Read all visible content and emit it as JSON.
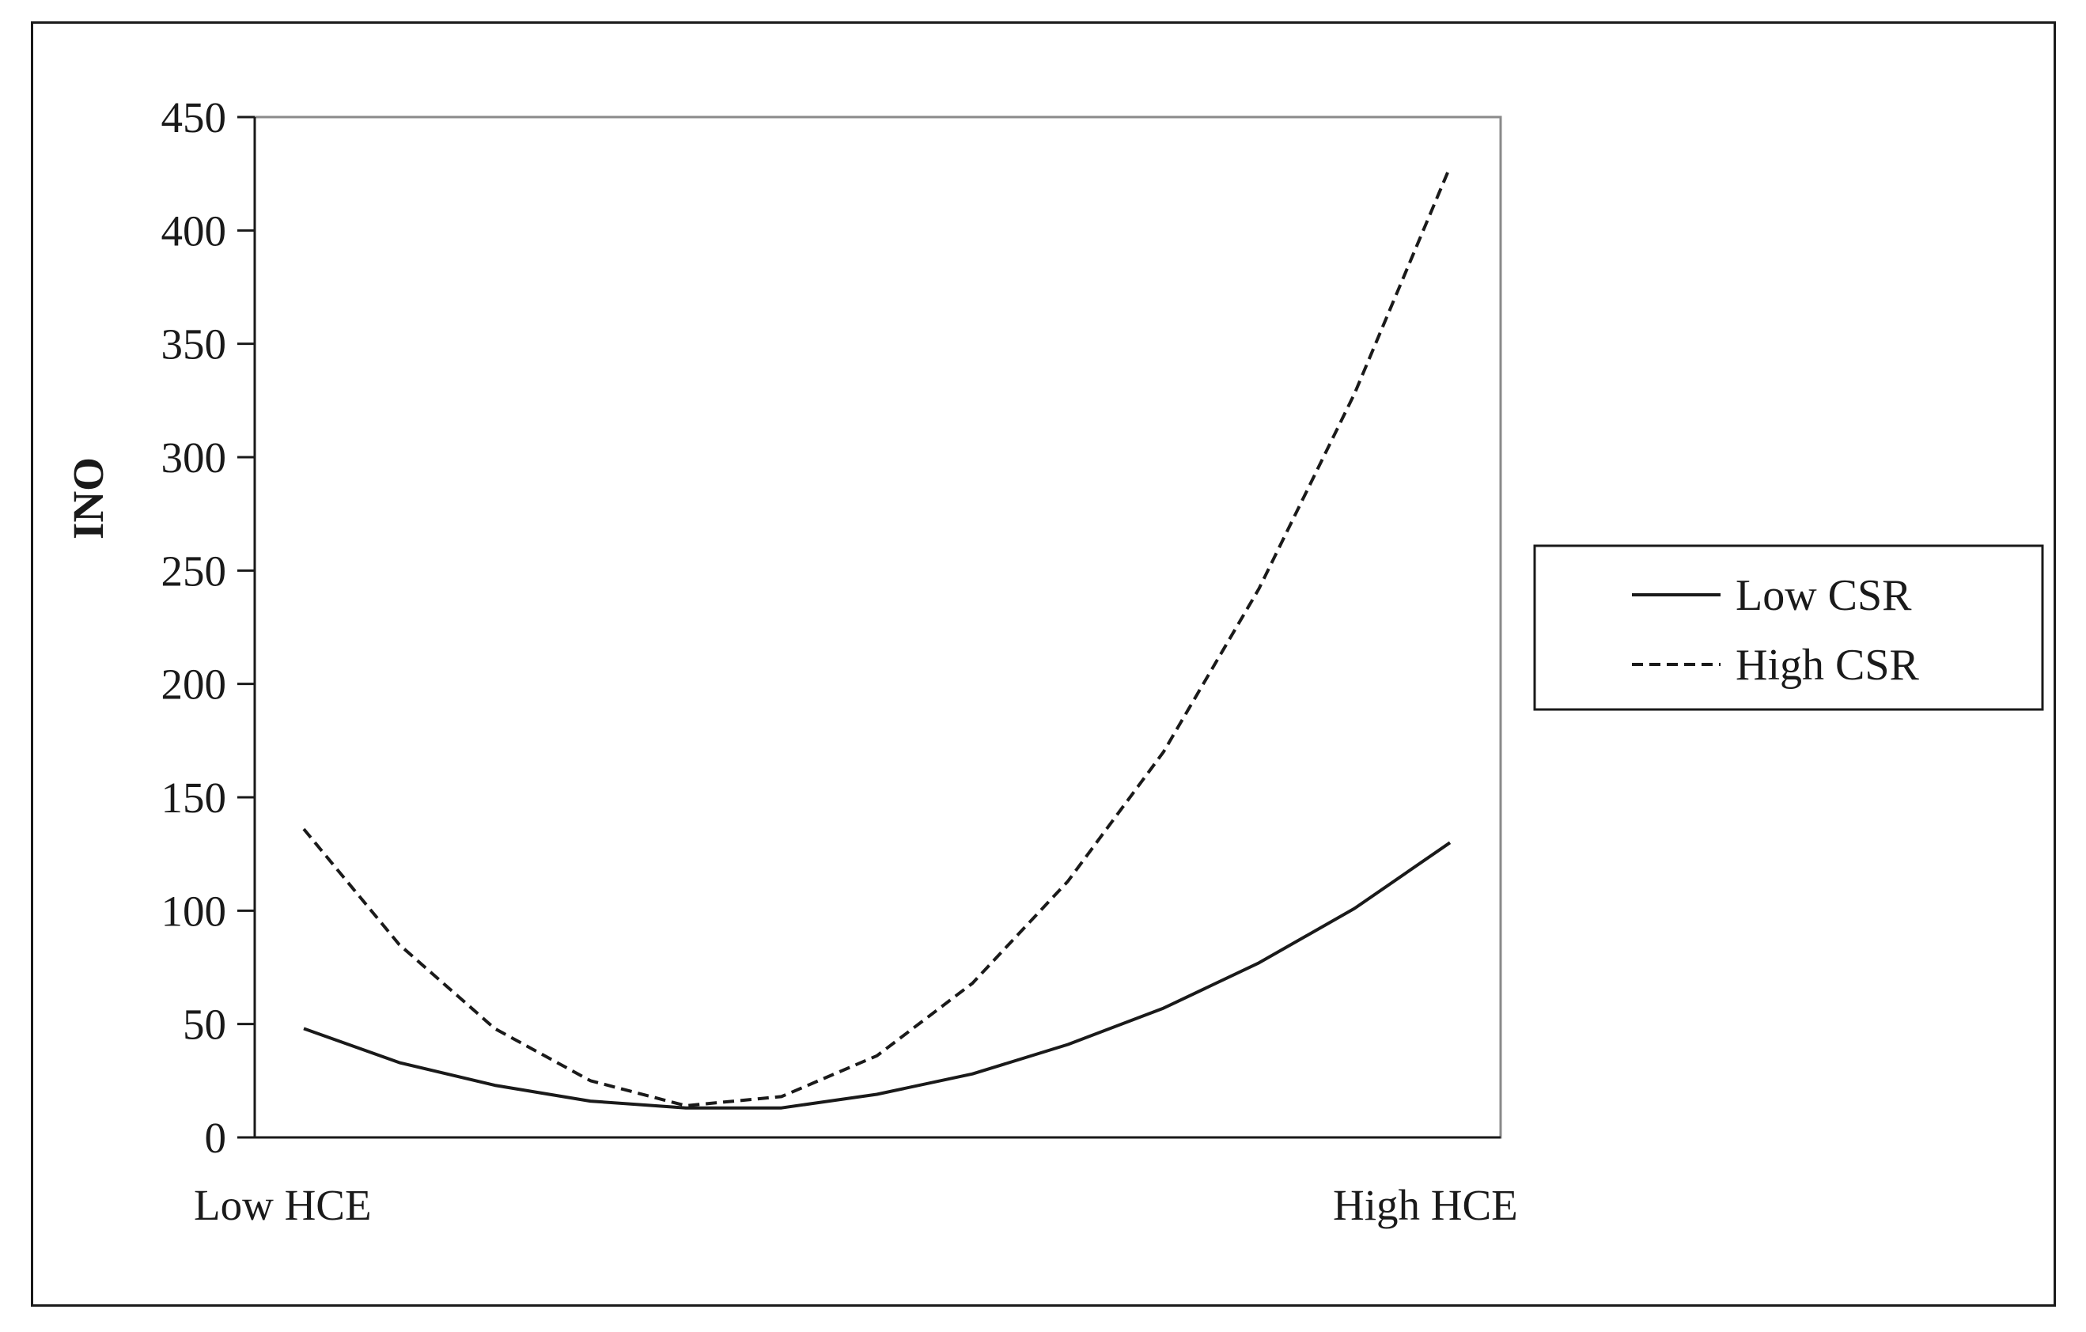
{
  "chart_data": {
    "type": "line",
    "title": "",
    "xlabel": "",
    "ylabel": "INO",
    "x_tick_labels": [
      "Low HCE",
      "High HCE"
    ],
    "ylim": [
      0,
      450
    ],
    "yticks": [
      0,
      50,
      100,
      150,
      200,
      250,
      300,
      350,
      400,
      450
    ],
    "grid": false,
    "legend_position": "right",
    "x": [
      1,
      2,
      3,
      4,
      5,
      6,
      7,
      8,
      9,
      10,
      11,
      12,
      13
    ],
    "series": [
      {
        "name": "Low CSR",
        "style": "solid",
        "color": "#1a1a1a",
        "values": [
          48,
          33,
          23,
          16,
          13,
          13,
          19,
          28,
          41,
          57,
          77,
          101,
          130
        ]
      },
      {
        "name": "High CSR",
        "style": "dashed",
        "color": "#1a1a1a",
        "values": [
          136,
          85,
          48,
          25,
          14,
          18,
          36,
          68,
          113,
          170,
          242,
          328,
          428
        ]
      }
    ]
  }
}
